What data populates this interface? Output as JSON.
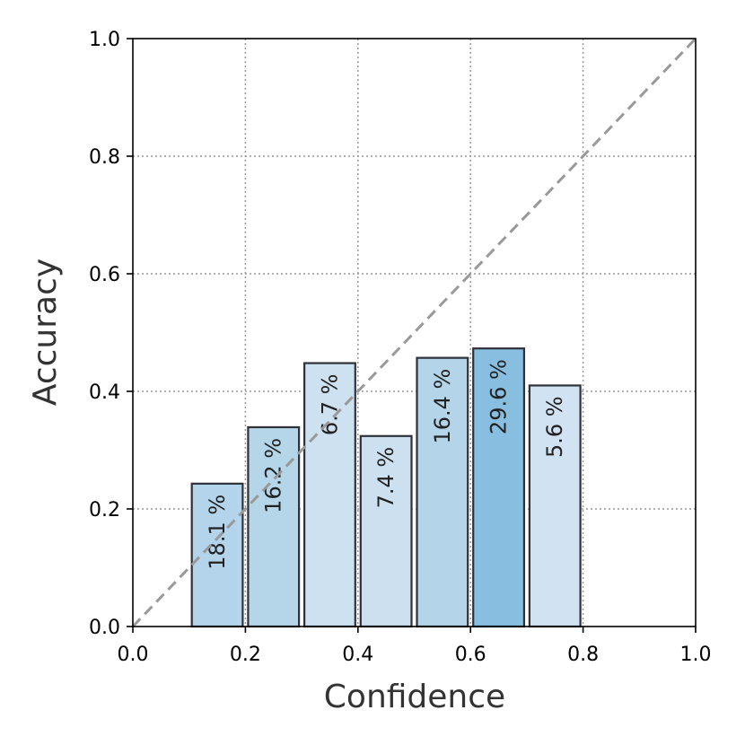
{
  "chart_data": {
    "type": "bar",
    "title": "",
    "xlabel": "Confidence",
    "ylabel": "Accuracy",
    "xlim": [
      0.0,
      1.0
    ],
    "ylim": [
      0.0,
      1.0
    ],
    "x_ticks": [
      "0.0",
      "0.2",
      "0.4",
      "0.6",
      "0.8",
      "1.0"
    ],
    "y_ticks": [
      "0.0",
      "0.2",
      "0.4",
      "0.6",
      "0.8",
      "1.0"
    ],
    "grid": true,
    "bin_width": 0.1,
    "bins": [
      {
        "x_start": 0.1,
        "accuracy": 0.243,
        "label": "18.1 %",
        "color": "#b3d4ea"
      },
      {
        "x_start": 0.2,
        "accuracy": 0.339,
        "label": "16.2 %",
        "color": "#b5d5e9"
      },
      {
        "x_start": 0.3,
        "accuracy": 0.448,
        "label": "6.7 %",
        "color": "#cee1f1"
      },
      {
        "x_start": 0.4,
        "accuracy": 0.324,
        "label": "7.4 %",
        "color": "#cce0f0"
      },
      {
        "x_start": 0.5,
        "accuracy": 0.457,
        "label": "16.4 %",
        "color": "#b4d5e9"
      },
      {
        "x_start": 0.6,
        "accuracy": 0.473,
        "label": "29.6 %",
        "color": "#88bfe0"
      },
      {
        "x_start": 0.7,
        "accuracy": 0.41,
        "label": "5.6 %",
        "color": "#d1e2f2"
      },
      {
        "x_start": 0.8,
        "accuracy": 0.0,
        "label": "",
        "color": "#e4eef8"
      },
      {
        "x_start": 0.9,
        "accuracy": 0.0,
        "label": "",
        "color": "#e4eef8"
      }
    ],
    "diagonal_color": "#999999",
    "bar_edge_color": "#2e3238"
  }
}
